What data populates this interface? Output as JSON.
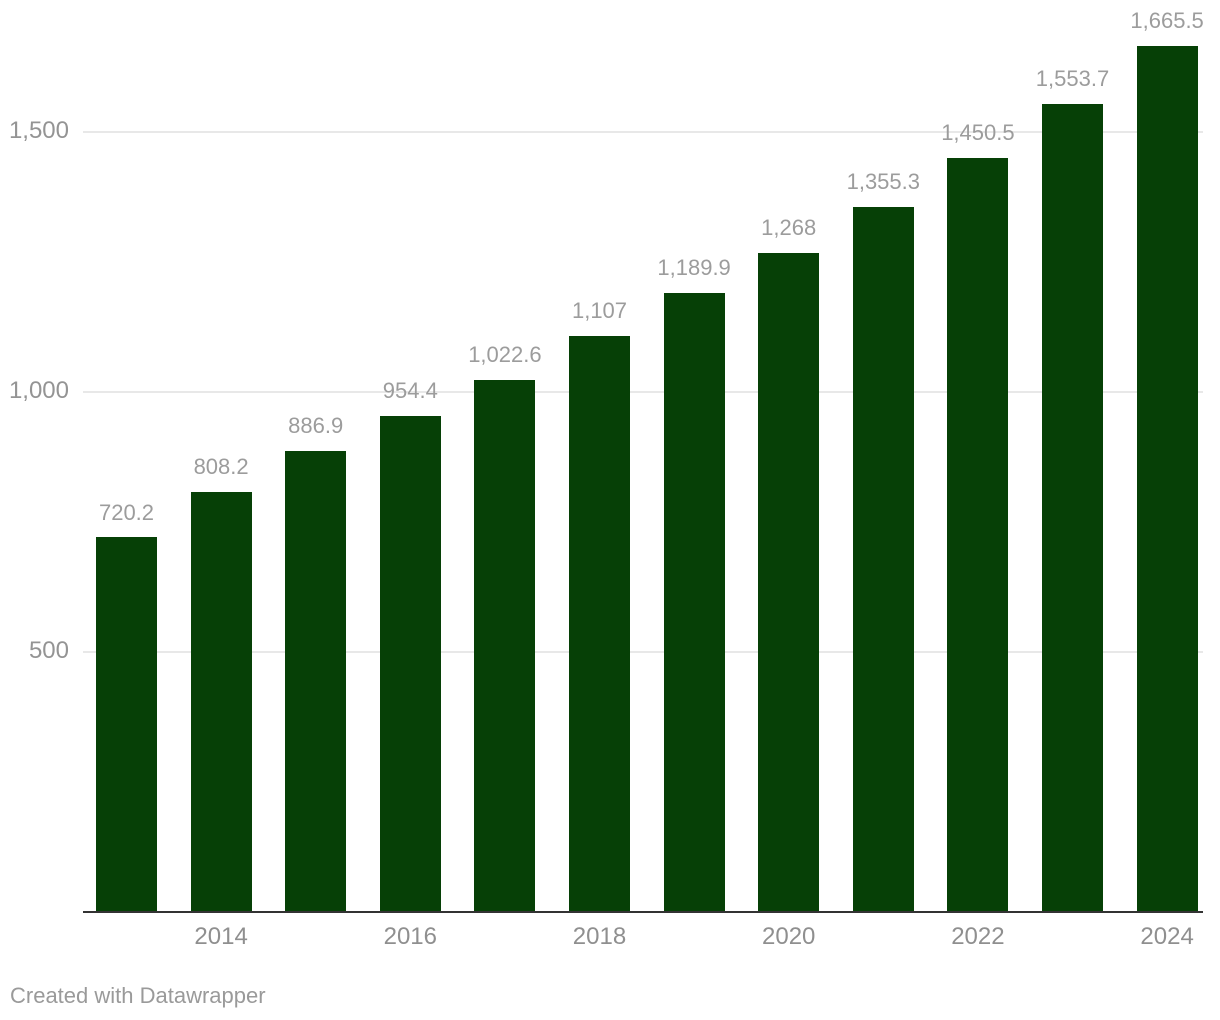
{
  "chart_data": {
    "type": "bar",
    "categories": [
      "2013",
      "2014",
      "2015",
      "2016",
      "2017",
      "2018",
      "2019",
      "2020",
      "2021",
      "2022",
      "2023",
      "2024"
    ],
    "values": [
      720.2,
      808.2,
      886.9,
      954.4,
      1022.6,
      1107,
      1189.9,
      1268,
      1355.3,
      1450.5,
      1553.7,
      1665.5
    ],
    "value_labels": [
      "720.2",
      "808.2",
      "886.9",
      "954.4",
      "1,022.6",
      "1,107",
      "1,189.9",
      "1,268",
      "1,355.3",
      "1,450.5",
      "1,553.7",
      "1,665.5"
    ],
    "title": "",
    "xlabel": "",
    "ylabel": "",
    "x_tick_labels": [
      "2014",
      "2016",
      "2018",
      "2020",
      "2022",
      "2024"
    ],
    "x_tick_bar_indexes": [
      1,
      3,
      5,
      7,
      9,
      11
    ],
    "y_ticks": [
      {
        "value": 500,
        "label": "500"
      },
      {
        "value": 1000,
        "label": "1,000"
      },
      {
        "value": 1500,
        "label": "1,500"
      }
    ],
    "ylim": [
      0,
      1750
    ],
    "grid": "horizontal",
    "legend": "none"
  },
  "colors": {
    "bar": "#064006",
    "grid_line": "#e8e8e8",
    "axis_line": "#333333",
    "value_label": "#9c9c9c",
    "y_tick_label": "#949494",
    "x_tick_label": "#8f8f8f",
    "attribution": "#9a9a9a",
    "background": "#ffffff"
  },
  "attribution": {
    "text": "Created with Datawrapper"
  }
}
